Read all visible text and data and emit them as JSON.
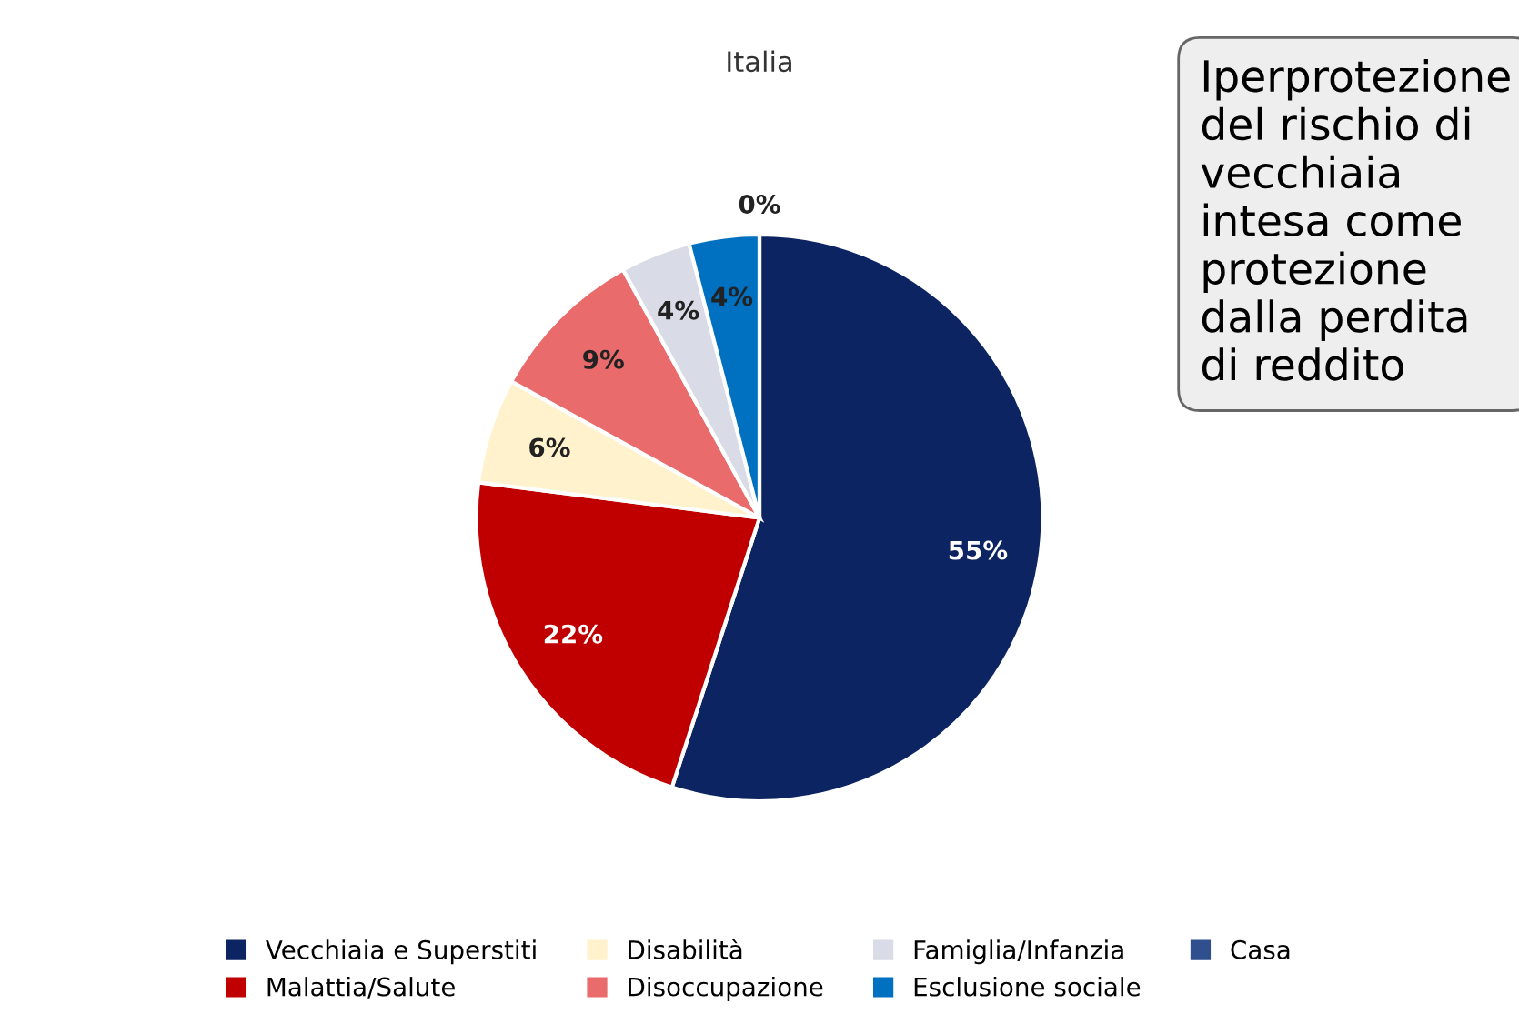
{
  "chart_data": {
    "type": "pie",
    "title": "Italia",
    "categories": [
      "Vecchiaia e Superstiti",
      "Malattia/Salute",
      "Disabilità",
      "Disoccupazione",
      "Famiglia/Infanzia",
      "Esclusione sociale",
      "Casa"
    ],
    "values": [
      55,
      22,
      6,
      9,
      4,
      4,
      0
    ],
    "colors": [
      "#0c2461",
      "#c00000",
      "#fff2cc",
      "#e96b6b",
      "#d9dce6",
      "#0070c0",
      "#2f4f8f"
    ],
    "value_labels": [
      "55%",
      "22%",
      "6%",
      "9%",
      "4%",
      "4%",
      "0%"
    ],
    "legend": "bottom",
    "annotations": [
      "Iperprotezione del rischio di vecchiaia intesa come protezione dalla perdita di reddito"
    ]
  }
}
